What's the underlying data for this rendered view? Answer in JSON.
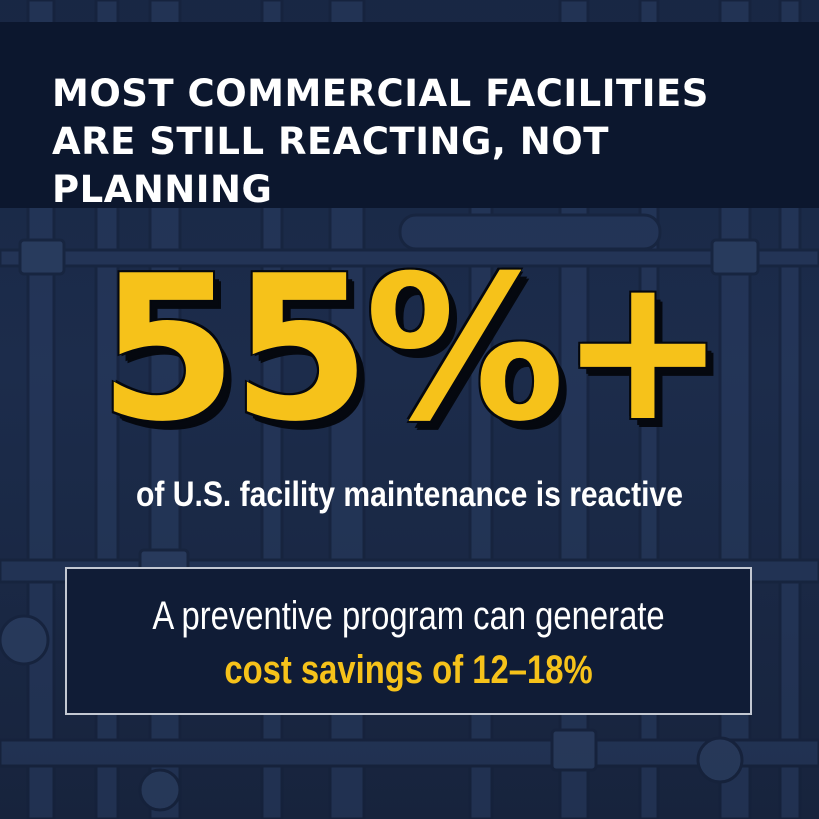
{
  "header": {
    "headline": "MOST COMMERCIAL FACILITIES ARE STILL REACTING, NOT PLANNING"
  },
  "stat": {
    "value": "55%+",
    "caption": "of U.S. facility maintenance is reactive"
  },
  "callout": {
    "line1": "A preventive program can generate",
    "line2": "cost savings of 12–18%"
  },
  "colors": {
    "navy_band": "#0c172e",
    "background": "#1e2f50",
    "accent_yellow": "#f6c21a",
    "text_white": "#ffffff",
    "box_border": "#c3c8d2"
  },
  "background_image": "industrial-pipes-photo"
}
